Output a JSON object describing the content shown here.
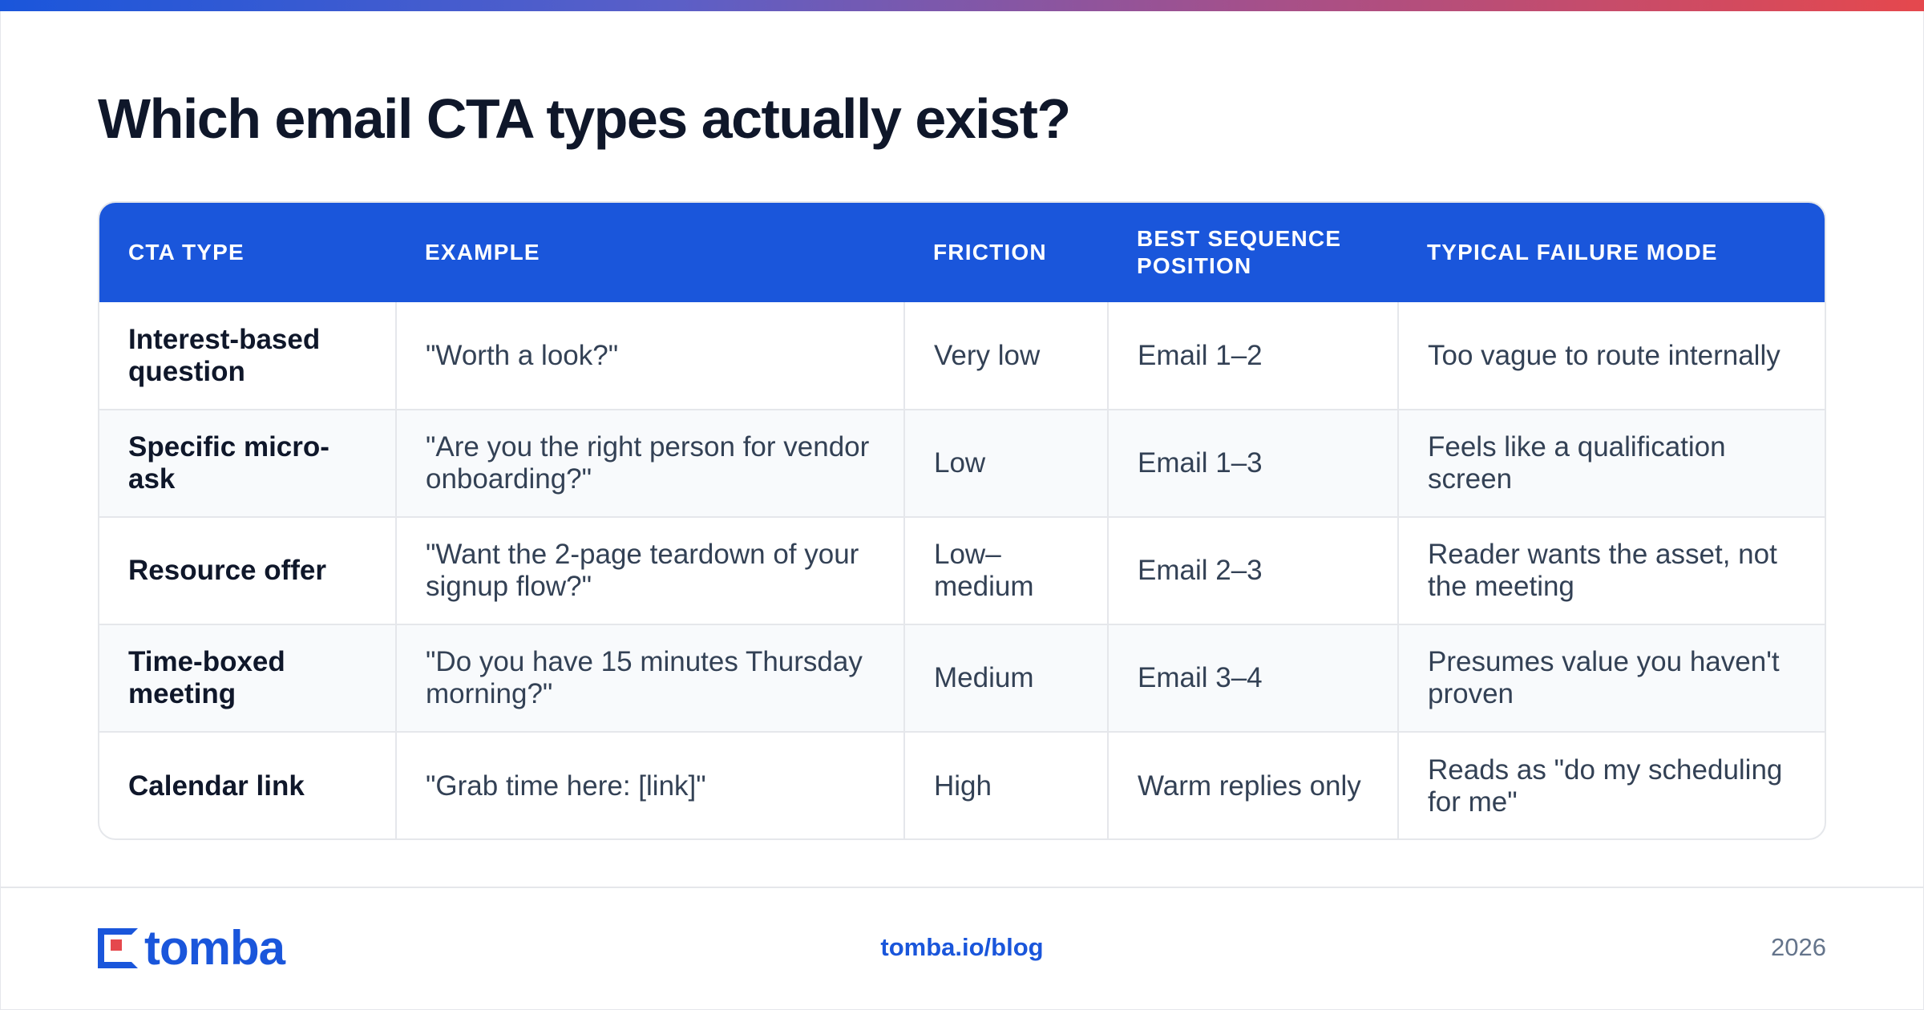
{
  "title": "Which email CTA types actually exist?",
  "table": {
    "headers": [
      "CTA TYPE",
      "EXAMPLE",
      "FRICTION",
      "BEST SEQUENCE POSITION",
      "TYPICAL FAILURE MODE"
    ],
    "rows": [
      [
        "Interest-based question",
        "\"Worth a look?\"",
        "Very low",
        "Email 1–2",
        "Too vague to route internally"
      ],
      [
        "Specific micro-ask",
        "\"Are you the right person for vendor onboarding?\"",
        "Low",
        "Email 1–3",
        "Feels like a qualification screen"
      ],
      [
        "Resource offer",
        "\"Want the 2-page teardown of your signup flow?\"",
        "Low–medium",
        "Email 2–3",
        "Reader wants the asset, not the meeting"
      ],
      [
        "Time-boxed meeting",
        "\"Do you have 15 minutes Thursday morning?\"",
        "Medium",
        "Email 3–4",
        "Presumes value you haven't proven"
      ],
      [
        "Calendar link",
        "\"Grab time here: [link]\"",
        "High",
        "Warm replies only",
        "Reads as \"do my scheduling for me\""
      ]
    ]
  },
  "footer": {
    "logo_text": "tomba",
    "url": "tomba.io/blog",
    "year": "2026"
  },
  "colors": {
    "accent": "#1a56db",
    "logo_red": "#e5484d"
  }
}
